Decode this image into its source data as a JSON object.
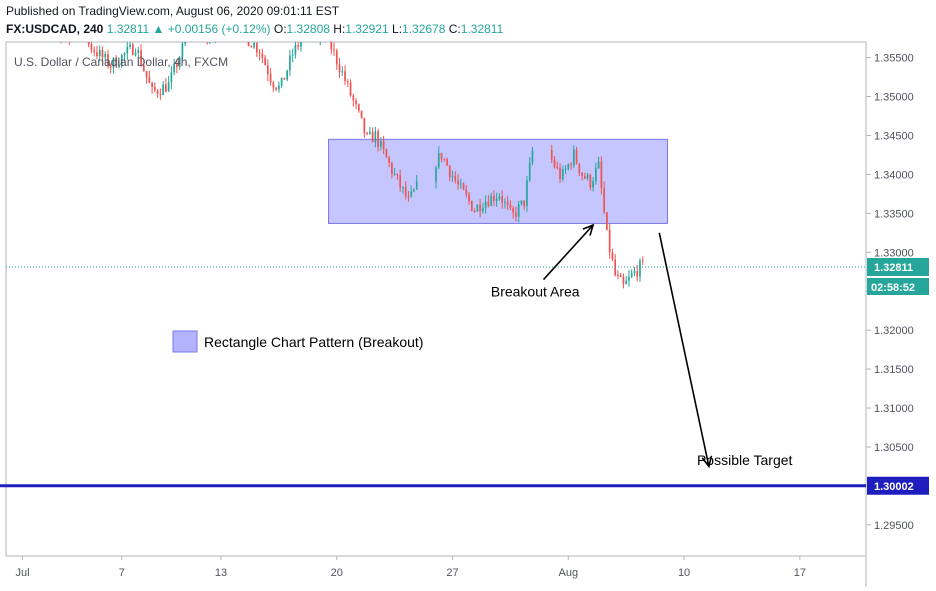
{
  "header": {
    "published": "Published on TradingView.com, August 06, 2020 09:01:11 EST",
    "symbol": "FX:USDCAD, 240",
    "last": "1.32811",
    "change": "+0.00156 (+0.12%)",
    "o_label": "O:",
    "o_value": "1.32808",
    "h_label": "H:",
    "h_value": "1.32921",
    "l_label": "L:",
    "l_value": "1.32678",
    "c_label": "C:",
    "c_value": "1.32811"
  },
  "colors": {
    "up": "#26a69a",
    "down": "#ef5350",
    "rect_fill": "#b3b3ff",
    "rect_stroke": "#7a7aee",
    "target_line": "#1e1ebe"
  },
  "chart_data": {
    "type": "candlestick",
    "legend_title": "U.S. Dollar / Canadian Dollar, 4h, FXCM",
    "ylim": [
      1.291,
      1.357
    ],
    "y_ticks": [
      "1.35500",
      "1.35000",
      "1.34500",
      "1.34000",
      "1.33500",
      "1.33000",
      "1.32500",
      "1.32000",
      "1.31500",
      "1.31000",
      "1.30500",
      "1.30000",
      "1.29500"
    ],
    "y_tick_values": [
      1.355,
      1.35,
      1.345,
      1.34,
      1.335,
      1.33,
      1.325,
      1.32,
      1.315,
      1.31,
      1.305,
      1.3,
      1.295
    ],
    "x_tick_labels": [
      "Jul",
      "7",
      "13",
      "20",
      "27",
      "Aug",
      "10",
      "17"
    ],
    "x_tick_values": [
      "2020-07-01",
      "2020-07-07",
      "2020-07-13",
      "2020-07-20",
      "2020-07-27",
      "2020-08-03",
      "2020-08-10",
      "2020-08-17"
    ],
    "x_range": [
      "2020-06-30",
      "2020-08-21"
    ],
    "current_price": {
      "value": 1.32811,
      "label": "1.32811",
      "countdown": "02:58:52"
    },
    "target_line": {
      "value": 1.30002,
      "label": "1.30002"
    },
    "rectangle": {
      "x_start": "2020-07-19T12:00",
      "x_end": "2020-08-09",
      "y_low": 1.3337,
      "y_high": 1.3445
    },
    "legend": {
      "label": "Rectangle Chart Pattern (Breakout)"
    },
    "annotations": [
      {
        "text": "Breakout Area",
        "x": "2020-08-01",
        "y": 1.3243
      },
      {
        "text": "Possible Target",
        "x": "2020-08-13T16:00",
        "y": 1.3027
      }
    ],
    "arrows": [
      {
        "from": [
          "2020-08-01T12:00",
          1.3265
        ],
        "to": [
          "2020-08-04T12:00",
          1.3335
        ]
      },
      {
        "from": [
          "2020-08-08T12:00",
          1.3325
        ],
        "to": [
          "2020-08-11T12:00",
          1.3025
        ]
      }
    ],
    "anchors": [
      {
        "t": "2020-07-01T00:00",
        "p": 1.36
      },
      {
        "t": "2020-07-05T00:00",
        "p": 1.357
      },
      {
        "t": "2020-07-06T12:00",
        "p": 1.354
      },
      {
        "t": "2020-07-08T00:00",
        "p": 1.3565
      },
      {
        "t": "2020-07-09T00:00",
        "p": 1.3505
      },
      {
        "t": "2020-07-10T00:00",
        "p": 1.3515
      },
      {
        "t": "2020-07-11T00:00",
        "p": 1.357
      },
      {
        "t": "2020-07-14T00:00",
        "p": 1.359
      },
      {
        "t": "2020-07-15T12:00",
        "p": 1.356
      },
      {
        "t": "2020-07-16T06:00",
        "p": 1.352
      },
      {
        "t": "2020-07-16T18:00",
        "p": 1.351
      },
      {
        "t": "2020-07-17T12:00",
        "p": 1.3555
      },
      {
        "t": "2020-07-18T12:00",
        "p": 1.359
      },
      {
        "t": "2020-07-19T12:00",
        "p": 1.358
      },
      {
        "t": "2020-07-20T12:00",
        "p": 1.353
      },
      {
        "t": "2020-07-21T12:00",
        "p": 1.3475
      },
      {
        "t": "2020-07-22T00:00",
        "p": 1.3445
      },
      {
        "t": "2020-07-22T12:00",
        "p": 1.345
      },
      {
        "t": "2020-07-23T12:00",
        "p": 1.3405
      },
      {
        "t": "2020-07-24T12:00",
        "p": 1.3365
      },
      {
        "t": "2020-07-25T12:00",
        "p": 1.34
      },
      {
        "t": "2020-07-26T12:00",
        "p": 1.3425
      },
      {
        "t": "2020-07-27T12:00",
        "p": 1.3385
      },
      {
        "t": "2020-07-28T12:00",
        "p": 1.3355
      },
      {
        "t": "2020-07-29T00:00",
        "p": 1.3365
      },
      {
        "t": "2020-07-30T00:00",
        "p": 1.3375
      },
      {
        "t": "2020-07-30T18:00",
        "p": 1.3345
      },
      {
        "t": "2020-07-31T12:00",
        "p": 1.3365
      },
      {
        "t": "2020-08-01T00:00",
        "p": 1.343
      },
      {
        "t": "2020-08-02T00:00",
        "p": 1.3425
      },
      {
        "t": "2020-08-02T18:00",
        "p": 1.3395
      },
      {
        "t": "2020-08-03T12:00",
        "p": 1.3425
      },
      {
        "t": "2020-08-04T00:00",
        "p": 1.34
      },
      {
        "t": "2020-08-04T12:00",
        "p": 1.339
      },
      {
        "t": "2020-08-05T00:00",
        "p": 1.341
      },
      {
        "t": "2020-08-05T12:00",
        "p": 1.332
      },
      {
        "t": "2020-08-06T00:00",
        "p": 1.327
      },
      {
        "t": "2020-08-06T12:00",
        "p": 1.3255
      },
      {
        "t": "2020-08-07T00:00",
        "p": 1.327
      },
      {
        "t": "2020-08-07T12:00",
        "p": 1.3281
      }
    ]
  }
}
